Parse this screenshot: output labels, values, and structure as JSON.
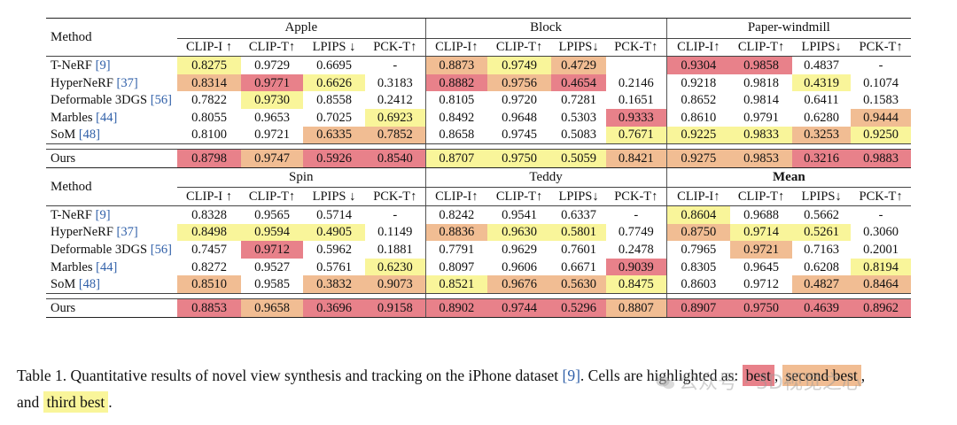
{
  "table": {
    "method_header": "Method",
    "blocks": [
      {
        "groups": [
          "Apple",
          "Block",
          "Paper-windmill"
        ],
        "metrics": [
          "CLIP-I ↑",
          "CLIP-T↑",
          "LPIPS ↓",
          "PCK-T↑",
          "CLIP-I↑",
          "CLIP-T↑",
          "LPIPS↓",
          "PCK-T↑",
          "CLIP-I↑",
          "CLIP-T↑",
          "LPIPS↓",
          "PCK-T↑"
        ],
        "rows": [
          {
            "name": "T-NeRF ",
            "cite": "[9]",
            "values": [
              "0.8275",
              "0.9729",
              "0.6695",
              "-",
              "0.8873",
              "0.9749",
              "0.4729",
              "",
              "0.9304",
              "0.9858",
              "0.4837",
              "-"
            ],
            "hl": [
              "third",
              "",
              "",
              "",
              "second",
              "third",
              "second",
              "",
              "best",
              "best",
              "",
              ""
            ]
          },
          {
            "name": "HyperNeRF ",
            "cite": "[37]",
            "values": [
              "0.8314",
              "0.9771",
              "0.6626",
              "0.3183",
              "0.8882",
              "0.9756",
              "0.4654",
              "0.2146",
              "0.9218",
              "0.9818",
              "0.4319",
              "0.1074"
            ],
            "hl": [
              "second",
              "best",
              "third",
              "",
              "best",
              "second",
              "best",
              "",
              "",
              "",
              "third",
              ""
            ]
          },
          {
            "name": "Deformable 3DGS ",
            "cite": "[56]",
            "values": [
              "0.7822",
              "0.9730",
              "0.8558",
              "0.2412",
              "0.8105",
              "0.9720",
              "0.7281",
              "0.1651",
              "0.8652",
              "0.9814",
              "0.6411",
              "0.1583"
            ],
            "hl": [
              "",
              "third",
              "",
              "",
              "",
              "",
              "",
              "",
              "",
              "",
              "",
              ""
            ]
          },
          {
            "name": "Marbles ",
            "cite": "[44]",
            "values": [
              "0.8055",
              "0.9653",
              "0.7025",
              "0.6923",
              "0.8492",
              "0.9648",
              "0.5303",
              "0.9333",
              "0.8610",
              "0.9791",
              "0.6280",
              "0.9444"
            ],
            "hl": [
              "",
              "",
              "",
              "third",
              "",
              "",
              "",
              "best",
              "",
              "",
              "",
              "second"
            ]
          },
          {
            "name": "SoM ",
            "cite": "[48]",
            "values": [
              "0.8100",
              "0.9721",
              "0.6335",
              "0.7852",
              "0.8658",
              "0.9745",
              "0.5083",
              "0.7671",
              "0.9225",
              "0.9833",
              "0.3253",
              "0.9250"
            ],
            "hl": [
              "",
              "",
              "second",
              "second",
              "",
              "",
              "",
              "third",
              "third",
              "third",
              "second",
              "third"
            ]
          }
        ],
        "ours": {
          "name": "Ours",
          "values": [
            "0.8798",
            "0.9747",
            "0.5926",
            "0.8540",
            "0.8707",
            "0.9750",
            "0.5059",
            "0.8421",
            "0.9275",
            "0.9853",
            "0.3216",
            "0.9883"
          ],
          "hl": [
            "best",
            "second",
            "best",
            "best",
            "third",
            "third",
            "third",
            "second",
            "second",
            "second",
            "best",
            "best"
          ]
        }
      },
      {
        "groups": [
          "Spin",
          "Teddy",
          "Mean"
        ],
        "metrics": [
          "CLIP-I ↑",
          "CLIP-T↑",
          "LPIPS ↓",
          "PCK-T↑",
          "CLIP-I↑",
          "CLIP-T↑",
          "LPIPS↓",
          "PCK-T↑",
          "CLIP-I↑",
          "CLIP-T↑",
          "LPIPS↓",
          "PCK-T↑"
        ],
        "rows": [
          {
            "name": "T-NeRF ",
            "cite": "[9]",
            "values": [
              "0.8328",
              "0.9565",
              "0.5714",
              "-",
              "0.8242",
              "0.9541",
              "0.6337",
              "-",
              "0.8604",
              "0.9688",
              "0.5662",
              "-"
            ],
            "hl": [
              "",
              "",
              "",
              "",
              "",
              "",
              "",
              "",
              "third",
              "",
              "",
              ""
            ]
          },
          {
            "name": "HyperNeRF ",
            "cite": "[37]",
            "values": [
              "0.8498",
              "0.9594",
              "0.4905",
              "0.1149",
              "0.8836",
              "0.9630",
              "0.5801",
              "0.7749",
              "0.8750",
              "0.9714",
              "0.5261",
              "0.3060"
            ],
            "hl": [
              "third",
              "third",
              "third",
              "",
              "second",
              "third",
              "third",
              "",
              "second",
              "third",
              "third",
              ""
            ]
          },
          {
            "name": "Deformable 3DGS ",
            "cite": "[56]",
            "values": [
              "0.7457",
              "0.9712",
              "0.5962",
              "0.1881",
              "0.7791",
              "0.9629",
              "0.7601",
              "0.2478",
              "0.7965",
              "0.9721",
              "0.7163",
              "0.2001"
            ],
            "hl": [
              "",
              "best",
              "",
              "",
              "",
              "",
              "",
              "",
              "",
              "second",
              "",
              ""
            ]
          },
          {
            "name": "Marbles ",
            "cite": "[44]",
            "values": [
              "0.8272",
              "0.9527",
              "0.5761",
              "0.6230",
              "0.8097",
              "0.9606",
              "0.6671",
              "0.9039",
              "0.8305",
              "0.9645",
              "0.6208",
              "0.8194"
            ],
            "hl": [
              "",
              "",
              "",
              "third",
              "",
              "",
              "",
              "best",
              "",
              "",
              "",
              "third"
            ]
          },
          {
            "name": "SoM ",
            "cite": "[48]",
            "values": [
              "0.8510",
              "0.9585",
              "0.3832",
              "0.9073",
              "0.8521",
              "0.9676",
              "0.5630",
              "0.8475",
              "0.8603",
              "0.9712",
              "0.4827",
              "0.8464"
            ],
            "hl": [
              "second",
              "",
              "second",
              "second",
              "third",
              "second",
              "second",
              "third",
              "",
              "",
              "second",
              "second"
            ]
          }
        ],
        "ours": {
          "name": "Ours",
          "values": [
            "0.8853",
            "0.9658",
            "0.3696",
            "0.9158",
            "0.8902",
            "0.9744",
            "0.5296",
            "0.8807",
            "0.8907",
            "0.9750",
            "0.4639",
            "0.8962"
          ],
          "hl": [
            "best",
            "second",
            "best",
            "best",
            "best",
            "best",
            "best",
            "second",
            "best",
            "best",
            "best",
            "best"
          ]
        }
      }
    ]
  },
  "caption": {
    "prefix": "Table 1. Quantitative results of novel view synthesis and tracking on the iPhone dataset ",
    "cite": "[9]",
    "middle": ". Cells are highlighted as: ",
    "best": "best",
    "comma1": ", ",
    "second": "second best",
    "comma2": ",",
    "and": "and ",
    "third": "third best",
    "end": "."
  },
  "watermark": {
    "text": "公众号 · 3D视觉之心"
  },
  "colors": {
    "best": "#e8818a",
    "second": "#f1bd93",
    "third": "#f9f59a",
    "cite": "#2f5fa8"
  }
}
